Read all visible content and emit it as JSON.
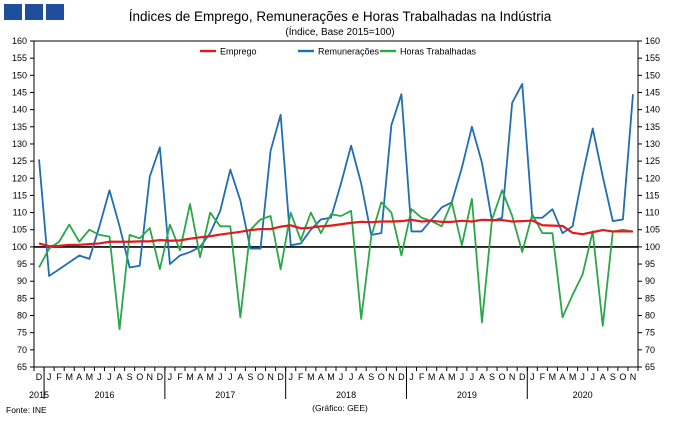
{
  "chart_data": {
    "type": "line",
    "title": "Índices de Emprego, Remunerações e Horas Trabalhadas na Indústria",
    "subtitle": "(Índice, Base 2015=100)",
    "source": "Fonte: INE",
    "credit": "(Gráfico: GEE)",
    "xlabel": "",
    "ylabel": "",
    "ylim": [
      65,
      160
    ],
    "yticks": [
      65,
      70,
      75,
      80,
      85,
      90,
      95,
      100,
      105,
      110,
      115,
      120,
      125,
      130,
      135,
      140,
      145,
      150,
      155,
      160
    ],
    "y_axis_sides": [
      "left",
      "right"
    ],
    "grid": false,
    "legend": "top",
    "reference_line": 100,
    "month_labels": [
      "D",
      "J",
      "F",
      "M",
      "A",
      "M",
      "J",
      "J",
      "A",
      "S",
      "O",
      "N",
      "D",
      "J",
      "F",
      "M",
      "A",
      "M",
      "J",
      "J",
      "A",
      "S",
      "O",
      "N",
      "D",
      "J",
      "F",
      "M",
      "A",
      "M",
      "J",
      "J",
      "A",
      "S",
      "O",
      "N",
      "D",
      "J",
      "F",
      "M",
      "A",
      "M",
      "J",
      "J",
      "A",
      "S",
      "O",
      "N",
      "D",
      "J",
      "F",
      "M",
      "A",
      "M",
      "J",
      "J",
      "A",
      "S",
      "O",
      "N"
    ],
    "year_labels": [
      "2015",
      "2016",
      "2017",
      "2018",
      "2019",
      "2020"
    ],
    "x": [
      "2015-12",
      "2016-01",
      "2016-02",
      "2016-03",
      "2016-04",
      "2016-05",
      "2016-06",
      "2016-07",
      "2016-08",
      "2016-09",
      "2016-10",
      "2016-11",
      "2016-12",
      "2017-01",
      "2017-02",
      "2017-03",
      "2017-04",
      "2017-05",
      "2017-06",
      "2017-07",
      "2017-08",
      "2017-09",
      "2017-10",
      "2017-11",
      "2017-12",
      "2018-01",
      "2018-02",
      "2018-03",
      "2018-04",
      "2018-05",
      "2018-06",
      "2018-07",
      "2018-08",
      "2018-09",
      "2018-10",
      "2018-11",
      "2018-12",
      "2019-01",
      "2019-02",
      "2019-03",
      "2019-04",
      "2019-05",
      "2019-06",
      "2019-07",
      "2019-08",
      "2019-09",
      "2019-10",
      "2019-11",
      "2019-12",
      "2020-01",
      "2020-02",
      "2020-03",
      "2020-04",
      "2020-05",
      "2020-06",
      "2020-07",
      "2020-08",
      "2020-09",
      "2020-10",
      "2020-11"
    ],
    "series": [
      {
        "name": "Emprego",
        "color": "#e31a1c",
        "values": [
          101,
          100.2,
          100.3,
          100.6,
          100.6,
          100.8,
          101,
          101.5,
          101.5,
          101.5,
          101.6,
          101.6,
          102,
          101.8,
          101.9,
          102.4,
          102.8,
          103.1,
          103.6,
          104,
          104.4,
          104.9,
          105.2,
          105.2,
          105.9,
          106.3,
          105.4,
          105.6,
          106,
          106.2,
          106.6,
          107,
          107.3,
          107.2,
          107.4,
          107.4,
          107.5,
          107.9,
          107.4,
          107.6,
          107.3,
          107.3,
          107.6,
          107.4,
          107.9,
          107.8,
          107.8,
          107.4,
          107.5,
          107.7,
          106.3,
          106.2,
          106.1,
          104.1,
          103.7,
          104.3,
          104.9,
          104.5,
          104.5,
          104.5
        ]
      },
      {
        "name": "Remunerações",
        "color": "#1f6db5",
        "values": [
          125.5,
          91.5,
          93.5,
          95.5,
          97.5,
          96.5,
          106,
          116.5,
          106,
          94,
          94.5,
          120.5,
          129,
          95,
          97.5,
          98.5,
          100,
          104,
          110.5,
          122.5,
          113.5,
          99.5,
          99.5,
          128,
          138.5,
          100.5,
          101,
          105,
          108,
          108.5,
          118.5,
          129.5,
          118.5,
          103.5,
          104,
          135.5,
          144.5,
          104.5,
          104.5,
          108,
          111.5,
          113,
          123,
          135,
          124.5,
          107.5,
          108.5,
          142,
          147.5,
          108.5,
          108.5,
          111,
          104,
          106,
          121,
          134.5,
          120.5,
          107.5,
          108,
          144.5
        ]
      },
      {
        "name": "Horas Trabalhadas",
        "color": "#2ca64a",
        "values": [
          94,
          99.5,
          101.5,
          106.5,
          101.5,
          105,
          103.5,
          103,
          76,
          103.5,
          102.5,
          105.5,
          93.5,
          106.5,
          99,
          112.5,
          97,
          110,
          106,
          106,
          79.5,
          105,
          108,
          109,
          93.5,
          110,
          102,
          110,
          104,
          109.5,
          109,
          110.5,
          79,
          103,
          113,
          110,
          97.5,
          111,
          108.5,
          107.5,
          106,
          113,
          100.5,
          114,
          78,
          108,
          116.5,
          109,
          98.5,
          109.5,
          104,
          104,
          79.5,
          86,
          92,
          104.5,
          77,
          104.5,
          105,
          104.5
        ]
      }
    ]
  }
}
